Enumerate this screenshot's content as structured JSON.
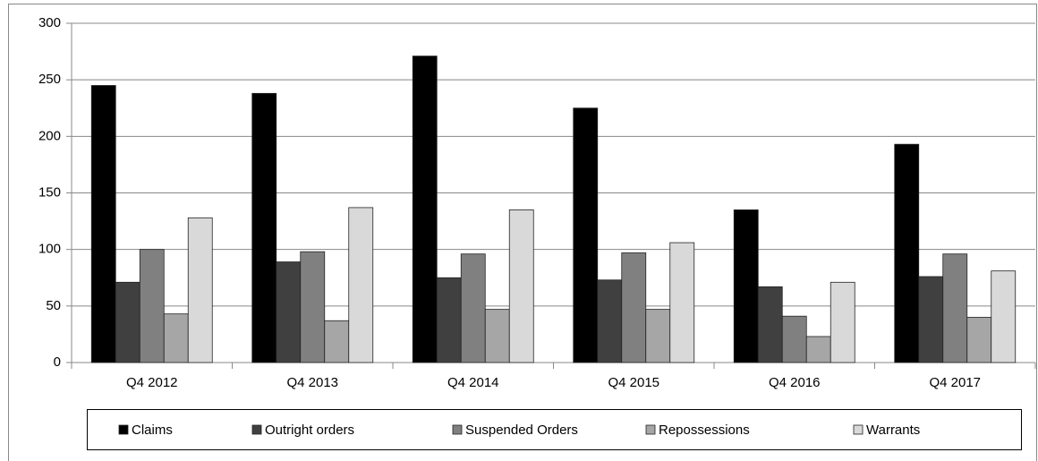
{
  "chart_data": {
    "type": "bar",
    "categories": [
      "Q4 2012",
      "Q4 2013",
      "Q4 2014",
      "Q4 2015",
      "Q4 2016",
      "Q4 2017"
    ],
    "series": [
      {
        "name": "Claims",
        "color": "#000000",
        "values": [
          245,
          238,
          271,
          225,
          135,
          193
        ]
      },
      {
        "name": "Outright orders",
        "color": "#404040",
        "values": [
          71,
          89,
          75,
          73,
          67,
          76
        ]
      },
      {
        "name": "Suspended Orders",
        "color": "#808080",
        "values": [
          100,
          98,
          96,
          97,
          41,
          96
        ]
      },
      {
        "name": "Repossessions",
        "color": "#a6a6a6",
        "values": [
          43,
          37,
          47,
          47,
          23,
          40
        ]
      },
      {
        "name": "Warrants",
        "color": "#d9d9d9",
        "values": [
          128,
          137,
          135,
          106,
          71,
          81
        ]
      }
    ],
    "ylim": [
      0,
      300
    ],
    "yticks": [
      0,
      50,
      100,
      150,
      200,
      250,
      300
    ],
    "grid": true,
    "legend": "bottom"
  }
}
